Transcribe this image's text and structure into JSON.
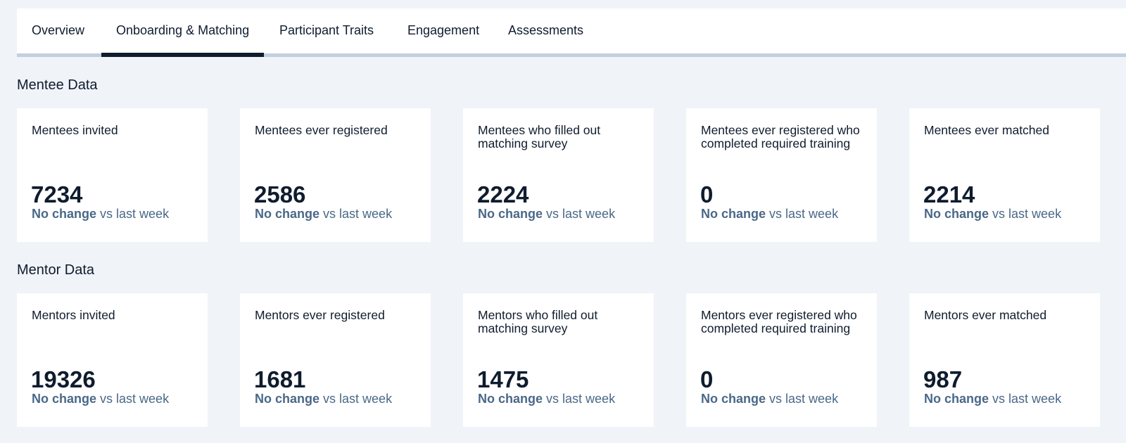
{
  "tabs": [
    {
      "label": "Overview",
      "active": false
    },
    {
      "label": "Onboarding & Matching",
      "active": true
    },
    {
      "label": "Participant Traits",
      "active": false
    },
    {
      "label": "Engagement",
      "active": false
    },
    {
      "label": "Assessments",
      "active": false
    }
  ],
  "colors": {
    "page_background": "#f0f3f8",
    "card_background": "#ffffff",
    "text_primary": "#0f1c2e",
    "text_secondary": "#4a6888",
    "tab_indicator": "#0f1c2e",
    "tab_track": "#c1cfde"
  },
  "mentee": {
    "title": "Mentee Data",
    "cards": [
      {
        "label": "Mentees invited",
        "value": "7234",
        "change": "No change",
        "suffix": "vs last week"
      },
      {
        "label": "Mentees ever registered",
        "value": "2586",
        "change": "No change",
        "suffix": "vs last week"
      },
      {
        "label": "Mentees who filled out matching survey",
        "value": "2224",
        "change": "No change",
        "suffix": "vs last week"
      },
      {
        "label": "Mentees ever registered who completed required training",
        "value": "0",
        "change": "No change",
        "suffix": "vs last week"
      },
      {
        "label": "Mentees ever matched",
        "value": "2214",
        "change": "No change",
        "suffix": "vs last week"
      }
    ]
  },
  "mentor": {
    "title": "Mentor Data",
    "cards": [
      {
        "label": "Mentors invited",
        "value": "19326",
        "change": "No change",
        "suffix": "vs last week"
      },
      {
        "label": "Mentors ever registered",
        "value": "1681",
        "change": "No change",
        "suffix": "vs last week"
      },
      {
        "label": "Mentors who filled out matching survey",
        "value": "1475",
        "change": "No change",
        "suffix": "vs last week"
      },
      {
        "label": "Mentors ever registered who completed required training",
        "value": "0",
        "change": "No change",
        "suffix": "vs last week"
      },
      {
        "label": "Mentors ever matched",
        "value": "987",
        "change": "No change",
        "suffix": "vs last week"
      }
    ]
  }
}
